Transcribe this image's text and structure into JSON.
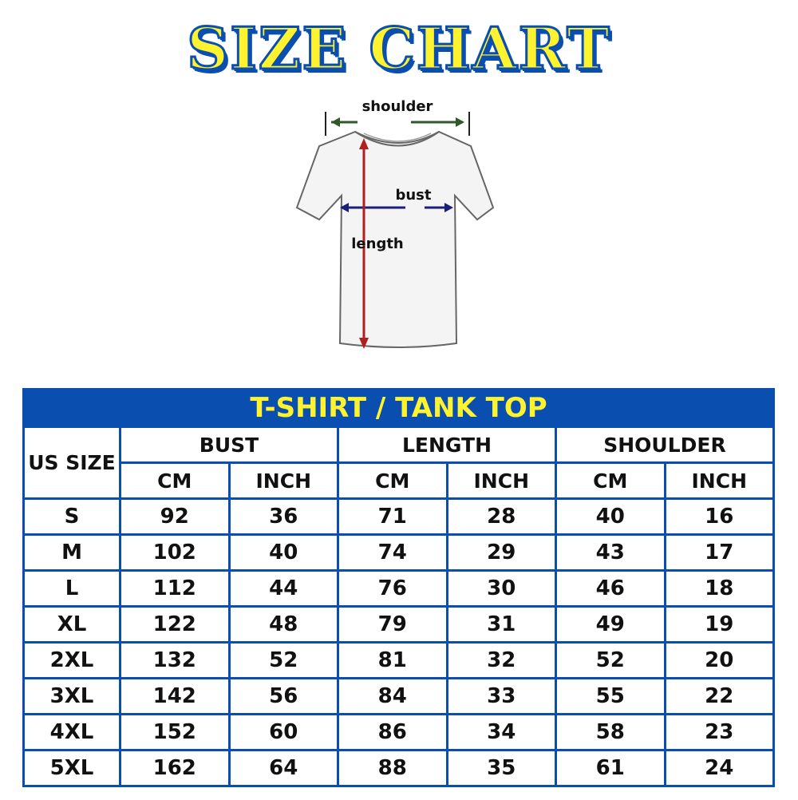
{
  "title": "SIZE CHART",
  "diagram": {
    "shoulder": "shoulder",
    "bust": "bust",
    "length": "length"
  },
  "table": {
    "caption": "T-SHIRT / TANK TOP",
    "size_header": "US SIZE",
    "groups": [
      "BUST",
      "LENGTH",
      "SHOULDER"
    ],
    "units": [
      "CM",
      "INCH",
      "CM",
      "INCH",
      "CM",
      "INCH"
    ],
    "rows": [
      [
        "S",
        "92",
        "36",
        "71",
        "28",
        "40",
        "16"
      ],
      [
        "M",
        "102",
        "40",
        "74",
        "29",
        "43",
        "17"
      ],
      [
        "L",
        "112",
        "44",
        "76",
        "30",
        "46",
        "18"
      ],
      [
        "XL",
        "122",
        "48",
        "79",
        "31",
        "49",
        "19"
      ],
      [
        "2XL",
        "132",
        "52",
        "81",
        "32",
        "52",
        "20"
      ],
      [
        "3XL",
        "142",
        "56",
        "84",
        "33",
        "55",
        "22"
      ],
      [
        "4XL",
        "152",
        "60",
        "86",
        "34",
        "58",
        "23"
      ],
      [
        "5XL",
        "162",
        "64",
        "88",
        "35",
        "61",
        "24"
      ]
    ]
  },
  "colors": {
    "blue": "#0a4fb0",
    "yellow": "#fff22e",
    "shoulder_arrow": "#2e5a2a",
    "bust_arrow": "#1c1f7a",
    "length_arrow": "#b01e1e"
  }
}
